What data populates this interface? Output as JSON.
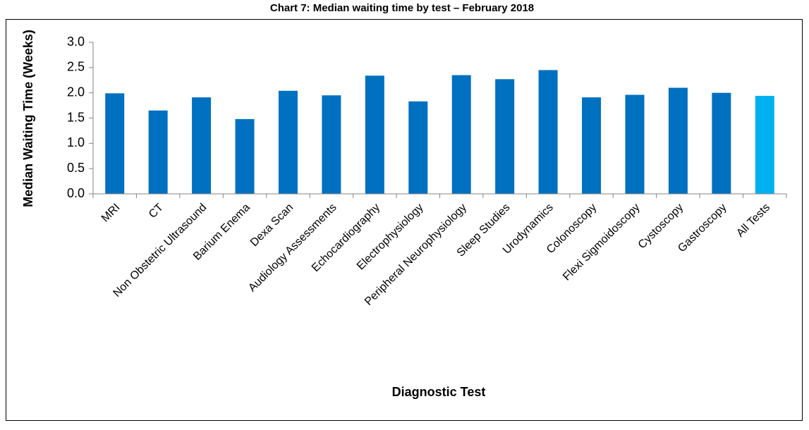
{
  "chart_data": {
    "type": "bar",
    "title": "Chart 7: Median waiting time by test – February 2018",
    "x_label": "Diagnostic Test",
    "y_label": "Median Waiting Time (Weeks)",
    "categories": [
      "MRI",
      "CT",
      "Non Obstetric Ultrasound",
      "Barium Enema",
      "Dexa Scan",
      "Audiology Assessments",
      "Echocardiography",
      "Electrophysiology",
      "Peripheral Neurophysiology",
      "Sleep Studies",
      "Urodynamics",
      "Colonoscopy",
      "Flexi Sigmoidoscopy",
      "Cystoscopy",
      "Gastroscopy",
      "All Tests"
    ],
    "values": [
      1.99,
      1.65,
      1.91,
      1.48,
      2.04,
      1.95,
      2.34,
      1.83,
      2.35,
      2.27,
      2.45,
      1.91,
      1.96,
      2.1,
      2.0,
      1.94
    ],
    "colors": [
      "#0070c0",
      "#0070c0",
      "#0070c0",
      "#0070c0",
      "#0070c0",
      "#0070c0",
      "#0070c0",
      "#0070c0",
      "#0070c0",
      "#0070c0",
      "#0070c0",
      "#0070c0",
      "#0070c0",
      "#0070c0",
      "#0070c0",
      "#00b0f0"
    ],
    "ylim": [
      0,
      3
    ],
    "yticks": [
      {
        "value": 0,
        "label": "0.0"
      },
      {
        "value": 0.5,
        "label": "0.5"
      },
      {
        "value": 1,
        "label": "1.0"
      },
      {
        "value": 1.5,
        "label": "1.5"
      },
      {
        "value": 2,
        "label": "2.0"
      },
      {
        "value": 2.5,
        "label": "2.5"
      },
      {
        "value": 3,
        "label": "3.0"
      }
    ],
    "grid": false
  }
}
